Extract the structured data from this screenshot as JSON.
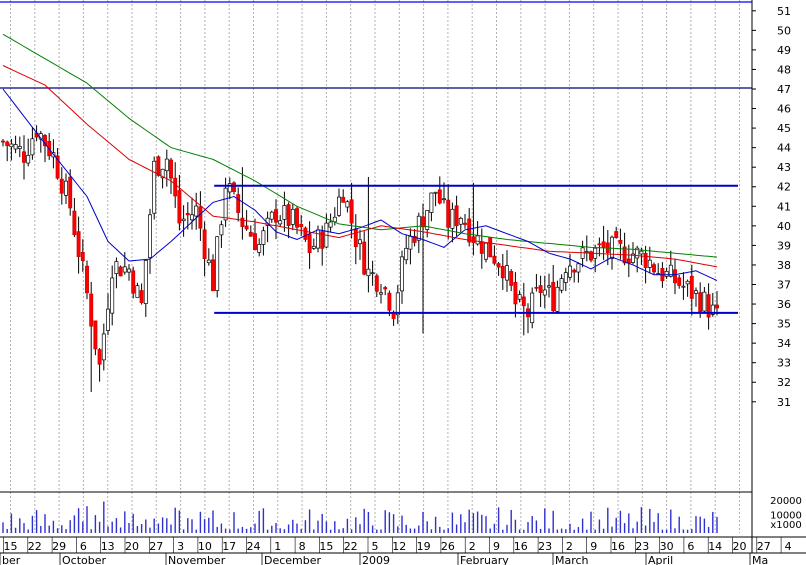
{
  "chart_data": {
    "type": "candlestick",
    "y_ticks": [
      "31",
      "32",
      "33",
      "34",
      "35",
      "36",
      "37",
      "38",
      "39",
      "40",
      "41",
      "42",
      "43",
      "44",
      "45",
      "46",
      "47",
      "48",
      "49",
      "50",
      "51"
    ],
    "ylim": [
      30.5,
      51.5
    ],
    "x_day_labels": [
      "15",
      "22",
      "29",
      "6",
      "13",
      "20",
      "27",
      "3",
      "10",
      "17",
      "24",
      "1",
      "8",
      "15",
      "22",
      "5",
      "12",
      "19",
      "26",
      "2",
      "9",
      "16",
      "23",
      "2",
      "9",
      "16",
      "23",
      "30",
      "6",
      "14",
      "20",
      "27",
      "4"
    ],
    "month_labels": [
      "ber",
      "October",
      "November",
      "December",
      "2009",
      "February",
      "March",
      "April",
      "Ma"
    ],
    "volume_scale_labels": [
      "20000",
      "10000",
      "x1000"
    ],
    "volume_ylim": [
      0,
      25000
    ],
    "horizontal_levels": [
      {
        "value": 51.45,
        "color": "#0000ff"
      },
      {
        "value": 47.05,
        "color": "#000080"
      }
    ],
    "channel_lines": [
      {
        "from_index": 51,
        "to_index": 175,
        "y": [
          42.05,
          42.05
        ],
        "color": "#0000cc"
      },
      {
        "from_index": 51,
        "to_index": 175,
        "y": [
          35.55,
          35.55
        ],
        "color": "#0000cc"
      }
    ],
    "moving_averages": [
      {
        "color": "#008000",
        "anchors": [
          [
            0,
            49.8
          ],
          [
            20,
            47.3
          ],
          [
            30,
            45.5
          ],
          [
            40,
            44.0
          ],
          [
            50,
            43.4
          ],
          [
            60,
            42.3
          ],
          [
            70,
            41.0
          ],
          [
            80,
            40.1
          ],
          [
            90,
            39.8
          ],
          [
            100,
            40.0
          ],
          [
            110,
            39.6
          ],
          [
            120,
            39.3
          ],
          [
            130,
            39.1
          ],
          [
            140,
            38.9
          ],
          [
            150,
            38.8
          ],
          [
            160,
            38.6
          ],
          [
            170,
            38.4
          ]
        ]
      },
      {
        "color": "#dd0000",
        "anchors": [
          [
            0,
            48.2
          ],
          [
            10,
            47.2
          ],
          [
            20,
            45.2
          ],
          [
            30,
            43.4
          ],
          [
            40,
            42.3
          ],
          [
            50,
            40.5
          ],
          [
            60,
            40.2
          ],
          [
            70,
            39.8
          ],
          [
            80,
            39.4
          ],
          [
            90,
            40.0
          ],
          [
            100,
            39.7
          ],
          [
            110,
            39.3
          ],
          [
            120,
            39.0
          ],
          [
            130,
            38.7
          ],
          [
            140,
            38.6
          ],
          [
            150,
            38.5
          ],
          [
            160,
            38.3
          ],
          [
            170,
            37.9
          ]
        ]
      },
      {
        "color": "#0000cc",
        "anchors": [
          [
            0,
            47.0
          ],
          [
            10,
            44.2
          ],
          [
            20,
            41.5
          ],
          [
            25,
            39.2
          ],
          [
            30,
            38.2
          ],
          [
            35,
            38.3
          ],
          [
            40,
            39.2
          ],
          [
            45,
            40.2
          ],
          [
            50,
            41.2
          ],
          [
            55,
            41.5
          ],
          [
            60,
            40.8
          ],
          [
            65,
            39.7
          ],
          [
            70,
            39.3
          ],
          [
            75,
            39.8
          ],
          [
            80,
            39.6
          ],
          [
            85,
            39.9
          ],
          [
            90,
            40.3
          ],
          [
            95,
            39.6
          ],
          [
            100,
            39.3
          ],
          [
            105,
            38.9
          ],
          [
            110,
            39.8
          ],
          [
            115,
            40.0
          ],
          [
            120,
            39.6
          ],
          [
            125,
            39.2
          ],
          [
            130,
            38.6
          ],
          [
            135,
            38.3
          ],
          [
            140,
            37.8
          ],
          [
            145,
            38.4
          ],
          [
            150,
            38.0
          ],
          [
            155,
            37.5
          ],
          [
            160,
            37.5
          ],
          [
            165,
            37.7
          ],
          [
            170,
            37.2
          ]
        ]
      }
    ],
    "close_anchors": [
      [
        0,
        44.3
      ],
      [
        5,
        43.7
      ],
      [
        8,
        45.0
      ],
      [
        12,
        43.6
      ],
      [
        16,
        41.0
      ],
      [
        20,
        36.5
      ],
      [
        23,
        32.8
      ],
      [
        26,
        38.0
      ],
      [
        30,
        37.8
      ],
      [
        33,
        35.9
      ],
      [
        36,
        43.0
      ],
      [
        39,
        43.5
      ],
      [
        42,
        40.2
      ],
      [
        46,
        40.8
      ],
      [
        50,
        37.1
      ],
      [
        53,
        42.2
      ],
      [
        57,
        40.2
      ],
      [
        61,
        39.0
      ],
      [
        65,
        40.7
      ],
      [
        69,
        40.2
      ],
      [
        73,
        38.8
      ],
      [
        77,
        39.7
      ],
      [
        81,
        41.9
      ],
      [
        84,
        39.4
      ],
      [
        87,
        37.6
      ],
      [
        90,
        37.2
      ],
      [
        93,
        35.8
      ],
      [
        96,
        38.9
      ],
      [
        100,
        40.5
      ],
      [
        103,
        41.8
      ],
      [
        106,
        40.2
      ],
      [
        109,
        40.6
      ],
      [
        112,
        39.5
      ],
      [
        116,
        38.7
      ],
      [
        119,
        38.0
      ],
      [
        122,
        36.0
      ],
      [
        125,
        35.5
      ],
      [
        128,
        36.8
      ],
      [
        131,
        36.3
      ],
      [
        134,
        38.1
      ],
      [
        137,
        38.3
      ],
      [
        140,
        38.6
      ],
      [
        143,
        38.8
      ],
      [
        147,
        38.7
      ],
      [
        150,
        38.6
      ],
      [
        153,
        38.4
      ],
      [
        156,
        37.7
      ],
      [
        160,
        37.2
      ],
      [
        164,
        36.6
      ],
      [
        167,
        36.1
      ],
      [
        170,
        35.3
      ]
    ],
    "candle_count": 171,
    "seed": 7
  }
}
